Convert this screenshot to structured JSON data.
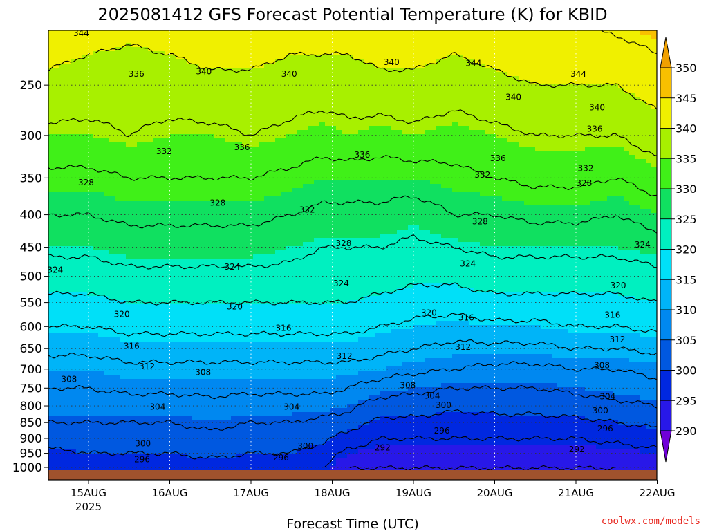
{
  "chart_data": {
    "type": "heatmap",
    "title": "2025081412 GFS Forecast Potential Temperature (K) for KBID",
    "xlabel": "Forecast Time (UTC)",
    "ylabel": "",
    "x_ticks": [
      {
        "label": "15AUG",
        "sub": "2025",
        "t": 1
      },
      {
        "label": "16AUG",
        "sub": "",
        "t": 2
      },
      {
        "label": "17AUG",
        "sub": "",
        "t": 3
      },
      {
        "label": "18AUG",
        "sub": "",
        "t": 4
      },
      {
        "label": "19AUG",
        "sub": "",
        "t": 5
      },
      {
        "label": "20AUG",
        "sub": "",
        "t": 6
      },
      {
        "label": "21AUG",
        "sub": "",
        "t": 7
      },
      {
        "label": "22AUG",
        "sub": "",
        "t": 8
      }
    ],
    "xlim": [
      0.5,
      8.0
    ],
    "y_ticks": [
      250,
      300,
      350,
      400,
      450,
      500,
      550,
      600,
      650,
      700,
      750,
      800,
      850,
      900,
      950,
      1000
    ],
    "y_axis": "pressure (hPa), log scale, inverted",
    "ylim": [
      1010,
      205
    ],
    "colorbar": {
      "levels": [
        290,
        295,
        300,
        305,
        310,
        315,
        320,
        325,
        330,
        335,
        340,
        345,
        350
      ],
      "colors": [
        "#7000d8",
        "#2818e8",
        "#0028e0",
        "#0058e0",
        "#0088f0",
        "#00b4f8",
        "#00e0f8",
        "#00f0c0",
        "#10e060",
        "#40f018",
        "#a8f000",
        "#f0f000",
        "#f8c000",
        "#f0a000"
      ]
    },
    "contour_levels": [
      292,
      296,
      300,
      304,
      308,
      312,
      316,
      320,
      324,
      328,
      332,
      336,
      340,
      344
    ],
    "theta_profile_1000_to_200hPa": {
      "pressures": [
        1000,
        950,
        900,
        850,
        800,
        750,
        700,
        650,
        600,
        550,
        500,
        450,
        400,
        350,
        300,
        250,
        200
      ],
      "columns": [
        {
          "t": 0.5,
          "theta": [
            296,
            299,
            302,
            304,
            306,
            308,
            310,
            313,
            316,
            319,
            322,
            325,
            328,
            331,
            335,
            339,
            343
          ]
        },
        {
          "t": 1.0,
          "theta": [
            297,
            300,
            302,
            304,
            306,
            308,
            310,
            313,
            316,
            319,
            322,
            325,
            328,
            331,
            335,
            338,
            342
          ]
        },
        {
          "t": 1.5,
          "theta": [
            298,
            300,
            302,
            304,
            306,
            309,
            311,
            314,
            317,
            320,
            323,
            326,
            329,
            332,
            336,
            338,
            341
          ]
        },
        {
          "t": 2.0,
          "theta": [
            298,
            300,
            302,
            304,
            306,
            309,
            311,
            314,
            317,
            320,
            323,
            326,
            329,
            332,
            335,
            338,
            342
          ]
        },
        {
          "t": 2.5,
          "theta": [
            298,
            301,
            303,
            305,
            307,
            309,
            311,
            314,
            317,
            320,
            323,
            326,
            329,
            332,
            335,
            339,
            343
          ]
        },
        {
          "t": 3.0,
          "theta": [
            298,
            300,
            302,
            304,
            306,
            309,
            311,
            314,
            317,
            320,
            323,
            326,
            329,
            332,
            336,
            339,
            343
          ]
        },
        {
          "t": 3.5,
          "theta": [
            297,
            300,
            302,
            304,
            306,
            309,
            311,
            314,
            317,
            320,
            323,
            325,
            328,
            331,
            335,
            338,
            342
          ]
        },
        {
          "t": 3.9,
          "theta": [
            296,
            298,
            301,
            303,
            306,
            309,
            311,
            314,
            317,
            320,
            322,
            324,
            327,
            330,
            334,
            338,
            342
          ]
        },
        {
          "t": 4.2,
          "theta": [
            292,
            295,
            298,
            302,
            305,
            308,
            311,
            314,
            317,
            320,
            322,
            324,
            327,
            330,
            335,
            338,
            342
          ]
        },
        {
          "t": 4.6,
          "theta": [
            292,
            294,
            296,
            299,
            302,
            306,
            310,
            313,
            316,
            319,
            322,
            324,
            327,
            330,
            334,
            339,
            343
          ]
        },
        {
          "t": 5.0,
          "theta": [
            292,
            294,
            296,
            299,
            302,
            305,
            309,
            312,
            315,
            318,
            321,
            323,
            326,
            330,
            335,
            339,
            343
          ]
        },
        {
          "t": 5.5,
          "theta": [
            292,
            294,
            296,
            298,
            301,
            304,
            308,
            311,
            314,
            318,
            321,
            324,
            328,
            331,
            334,
            338,
            342
          ]
        },
        {
          "t": 6.0,
          "theta": [
            292,
            294,
            296,
            299,
            301,
            304,
            307,
            311,
            315,
            319,
            322,
            325,
            328,
            332,
            335,
            339,
            343
          ]
        },
        {
          "t": 6.5,
          "theta": [
            292,
            294,
            296,
            299,
            301,
            304,
            307,
            311,
            315,
            319,
            322,
            325,
            329,
            333,
            336,
            340,
            344
          ]
        },
        {
          "t": 7.0,
          "theta": [
            292,
            294,
            296,
            299,
            302,
            305,
            308,
            312,
            316,
            319,
            322,
            325,
            329,
            333,
            336,
            340,
            344
          ]
        },
        {
          "t": 7.5,
          "theta": [
            292,
            294,
            297,
            300,
            303,
            306,
            308,
            312,
            316,
            319,
            322,
            325,
            328,
            332,
            336,
            340,
            345
          ]
        },
        {
          "t": 8.0,
          "theta": [
            293,
            295,
            298,
            301,
            304,
            307,
            309,
            313,
            317,
            320,
            323,
            326,
            330,
            334,
            338,
            342,
            346
          ]
        }
      ]
    },
    "contour_labels": [
      {
        "text": "344",
        "t": 0.91,
        "p": 207
      },
      {
        "text": "336",
        "t": 1.59,
        "p": 240
      },
      {
        "text": "340",
        "t": 2.42,
        "p": 238
      },
      {
        "text": "340",
        "t": 3.47,
        "p": 240
      },
      {
        "text": "340",
        "t": 4.73,
        "p": 230
      },
      {
        "text": "344",
        "t": 5.74,
        "p": 231
      },
      {
        "text": "340",
        "t": 6.23,
        "p": 261
      },
      {
        "text": "344",
        "t": 7.03,
        "p": 240
      },
      {
        "text": "340",
        "t": 7.26,
        "p": 271
      },
      {
        "text": "336",
        "t": 7.23,
        "p": 293
      },
      {
        "text": "336",
        "t": 2.89,
        "p": 313
      },
      {
        "text": "332",
        "t": 1.93,
        "p": 318
      },
      {
        "text": "336",
        "t": 4.37,
        "p": 322
      },
      {
        "text": "336",
        "t": 6.04,
        "p": 326
      },
      {
        "text": "332",
        "t": 5.85,
        "p": 346
      },
      {
        "text": "332",
        "t": 7.12,
        "p": 338
      },
      {
        "text": "332",
        "t": 0.23,
        "p": 347
      },
      {
        "text": "328",
        "t": 0.97,
        "p": 356
      },
      {
        "text": "328",
        "t": 7.1,
        "p": 357
      },
      {
        "text": "328",
        "t": 2.59,
        "p": 383
      },
      {
        "text": "332",
        "t": 3.69,
        "p": 393
      },
      {
        "text": "328",
        "t": 5.82,
        "p": 410
      },
      {
        "text": "328",
        "t": 4.14,
        "p": 444
      },
      {
        "text": "324",
        "t": 7.82,
        "p": 446
      },
      {
        "text": "324",
        "t": 5.67,
        "p": 478
      },
      {
        "text": "324",
        "t": 2.77,
        "p": 483
      },
      {
        "text": "324",
        "t": 0.59,
        "p": 489
      },
      {
        "text": "324",
        "t": 4.11,
        "p": 513
      },
      {
        "text": "320",
        "t": 7.52,
        "p": 517
      },
      {
        "text": "320",
        "t": 2.8,
        "p": 558
      },
      {
        "text": "320",
        "t": 1.41,
        "p": 574
      },
      {
        "text": "320",
        "t": 5.19,
        "p": 571
      },
      {
        "text": "316",
        "t": 7.45,
        "p": 575
      },
      {
        "text": "316",
        "t": 5.65,
        "p": 581
      },
      {
        "text": "316",
        "t": 3.4,
        "p": 603
      },
      {
        "text": "312",
        "t": 7.51,
        "p": 629
      },
      {
        "text": "316",
        "t": 1.53,
        "p": 644
      },
      {
        "text": "312",
        "t": 5.61,
        "p": 646
      },
      {
        "text": "312",
        "t": 4.15,
        "p": 668
      },
      {
        "text": "312",
        "t": 1.72,
        "p": 693
      },
      {
        "text": "308",
        "t": 7.32,
        "p": 691
      },
      {
        "text": "308",
        "t": 2.41,
        "p": 708
      },
      {
        "text": "308",
        "t": 0.76,
        "p": 726
      },
      {
        "text": "308",
        "t": 4.93,
        "p": 743
      },
      {
        "text": "304",
        "t": 5.23,
        "p": 771
      },
      {
        "text": "304",
        "t": 7.39,
        "p": 773
      },
      {
        "text": "300",
        "t": 5.37,
        "p": 798
      },
      {
        "text": "304",
        "t": 1.85,
        "p": 803
      },
      {
        "text": "304",
        "t": 3.5,
        "p": 803
      },
      {
        "text": "300",
        "t": 7.3,
        "p": 814
      },
      {
        "text": "296",
        "t": 5.35,
        "p": 876
      },
      {
        "text": "296",
        "t": 7.36,
        "p": 869
      },
      {
        "text": "300",
        "t": 1.67,
        "p": 917
      },
      {
        "text": "300",
        "t": 3.67,
        "p": 925
      },
      {
        "text": "292",
        "t": 4.62,
        "p": 931
      },
      {
        "text": "292",
        "t": 7.01,
        "p": 937
      },
      {
        "text": "296",
        "t": 1.66,
        "p": 972
      },
      {
        "text": "296",
        "t": 3.37,
        "p": 966
      }
    ]
  },
  "credit": "coolwx.com/models",
  "colors": {
    "ground": "#a0522d",
    "credit": "#e82820"
  }
}
